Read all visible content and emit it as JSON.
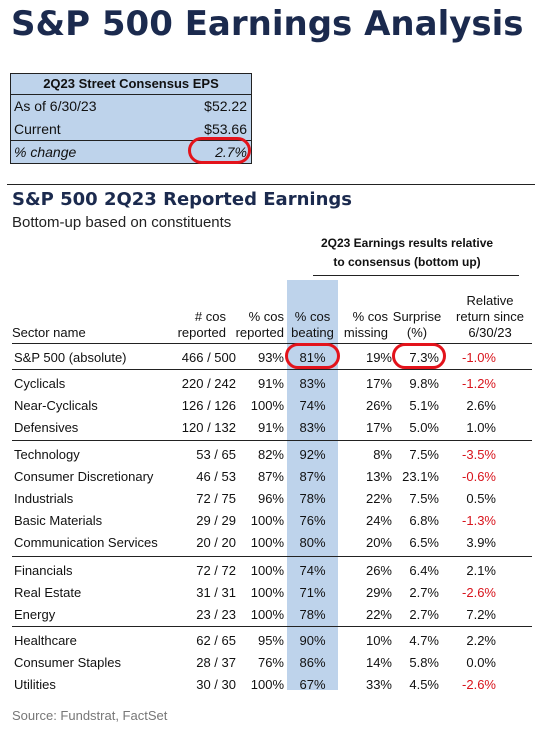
{
  "title": "S&P 500 Earnings Analysis",
  "eps_box": {
    "header": "2Q23 Street Consensus EPS",
    "rows": [
      {
        "label": "As of 6/30/23",
        "value": "$52.22"
      },
      {
        "label": "Current",
        "value": "$53.66"
      },
      {
        "label": "% change",
        "value": "2.7%"
      }
    ]
  },
  "subtitle": "S&P 500 2Q23 Reported Earnings",
  "caption": "Bottom-up based on constituents",
  "group_header": [
    "2Q23 Earnings results relative",
    "to consensus (bottom up)"
  ],
  "columns": {
    "sector": "Sector name",
    "reported": [
      "# cos",
      "reported"
    ],
    "pct_reported": [
      "% cos",
      "reported"
    ],
    "pct_beating": [
      "% cos",
      "beating"
    ],
    "pct_missing": [
      "% cos",
      "missing"
    ],
    "surprise": [
      "Surprise",
      "(%)"
    ],
    "relative_return": [
      "Relative",
      "return since",
      "6/30/23"
    ]
  },
  "source": "Source: Fundstrat, FactSet",
  "chart_data": {
    "type": "table",
    "title": "S&P 500 2Q23 Reported Earnings",
    "headers": [
      "Sector name",
      "# cos reported",
      "% cos reported",
      "% cos beating",
      "% cos missing",
      "Surprise (%)",
      "Relative return since 6/30/23"
    ],
    "groups": [
      [
        {
          "name": "S&P 500 (absolute)",
          "reported": "466 / 500",
          "pct_reported": "93%",
          "pct_beating": "81%",
          "pct_missing": "19%",
          "surprise": "7.3%",
          "rel_return": "-1.0%"
        }
      ],
      [
        {
          "name": "Cyclicals",
          "reported": "220 / 242",
          "pct_reported": "91%",
          "pct_beating": "83%",
          "pct_missing": "17%",
          "surprise": "9.8%",
          "rel_return": "-1.2%"
        },
        {
          "name": "Near-Cyclicals",
          "reported": "126 / 126",
          "pct_reported": "100%",
          "pct_beating": "74%",
          "pct_missing": "26%",
          "surprise": "5.1%",
          "rel_return": "2.6%"
        },
        {
          "name": "Defensives",
          "reported": "120 / 132",
          "pct_reported": "91%",
          "pct_beating": "83%",
          "pct_missing": "17%",
          "surprise": "5.0%",
          "rel_return": "1.0%"
        }
      ],
      [
        {
          "name": "Technology",
          "reported": "53 / 65",
          "pct_reported": "82%",
          "pct_beating": "92%",
          "pct_missing": "8%",
          "surprise": "7.5%",
          "rel_return": "-3.5%"
        },
        {
          "name": "Consumer Discretionary",
          "reported": "46 / 53",
          "pct_reported": "87%",
          "pct_beating": "87%",
          "pct_missing": "13%",
          "surprise": "23.1%",
          "rel_return": "-0.6%"
        },
        {
          "name": "Industrials",
          "reported": "72 / 75",
          "pct_reported": "96%",
          "pct_beating": "78%",
          "pct_missing": "22%",
          "surprise": "7.5%",
          "rel_return": "0.5%"
        },
        {
          "name": "Basic Materials",
          "reported": "29 / 29",
          "pct_reported": "100%",
          "pct_beating": "76%",
          "pct_missing": "24%",
          "surprise": "6.8%",
          "rel_return": "-1.3%"
        },
        {
          "name": "Communication Services",
          "reported": "20 / 20",
          "pct_reported": "100%",
          "pct_beating": "80%",
          "pct_missing": "20%",
          "surprise": "6.5%",
          "rel_return": "3.9%"
        }
      ],
      [
        {
          "name": "Financials",
          "reported": "72 / 72",
          "pct_reported": "100%",
          "pct_beating": "74%",
          "pct_missing": "26%",
          "surprise": "6.4%",
          "rel_return": "2.1%"
        },
        {
          "name": "Real Estate",
          "reported": "31 / 31",
          "pct_reported": "100%",
          "pct_beating": "71%",
          "pct_missing": "29%",
          "surprise": "2.7%",
          "rel_return": "-2.6%"
        },
        {
          "name": "Energy",
          "reported": "23 / 23",
          "pct_reported": "100%",
          "pct_beating": "78%",
          "pct_missing": "22%",
          "surprise": "2.7%",
          "rel_return": "7.2%"
        }
      ],
      [
        {
          "name": "Healthcare",
          "reported": "62 / 65",
          "pct_reported": "95%",
          "pct_beating": "90%",
          "pct_missing": "10%",
          "surprise": "4.7%",
          "rel_return": "2.2%"
        },
        {
          "name": "Consumer Staples",
          "reported": "28 / 37",
          "pct_reported": "76%",
          "pct_beating": "86%",
          "pct_missing": "14%",
          "surprise": "5.8%",
          "rel_return": "0.0%"
        },
        {
          "name": "Utilities",
          "reported": "30 / 30",
          "pct_reported": "100%",
          "pct_beating": "67%",
          "pct_missing": "33%",
          "surprise": "4.5%",
          "rel_return": "-2.6%"
        }
      ]
    ],
    "highlighted_column": "% cos beating",
    "circled": [
      "% change: 2.7%",
      "S&P 500 (absolute) % cos beating: 81%",
      "S&P 500 (absolute) Surprise: 7.3%"
    ],
    "colors": {
      "highlight": "#bed3eb",
      "negative": "#d8141c",
      "circle": "#e3131b",
      "title": "#1b2a4e"
    }
  }
}
